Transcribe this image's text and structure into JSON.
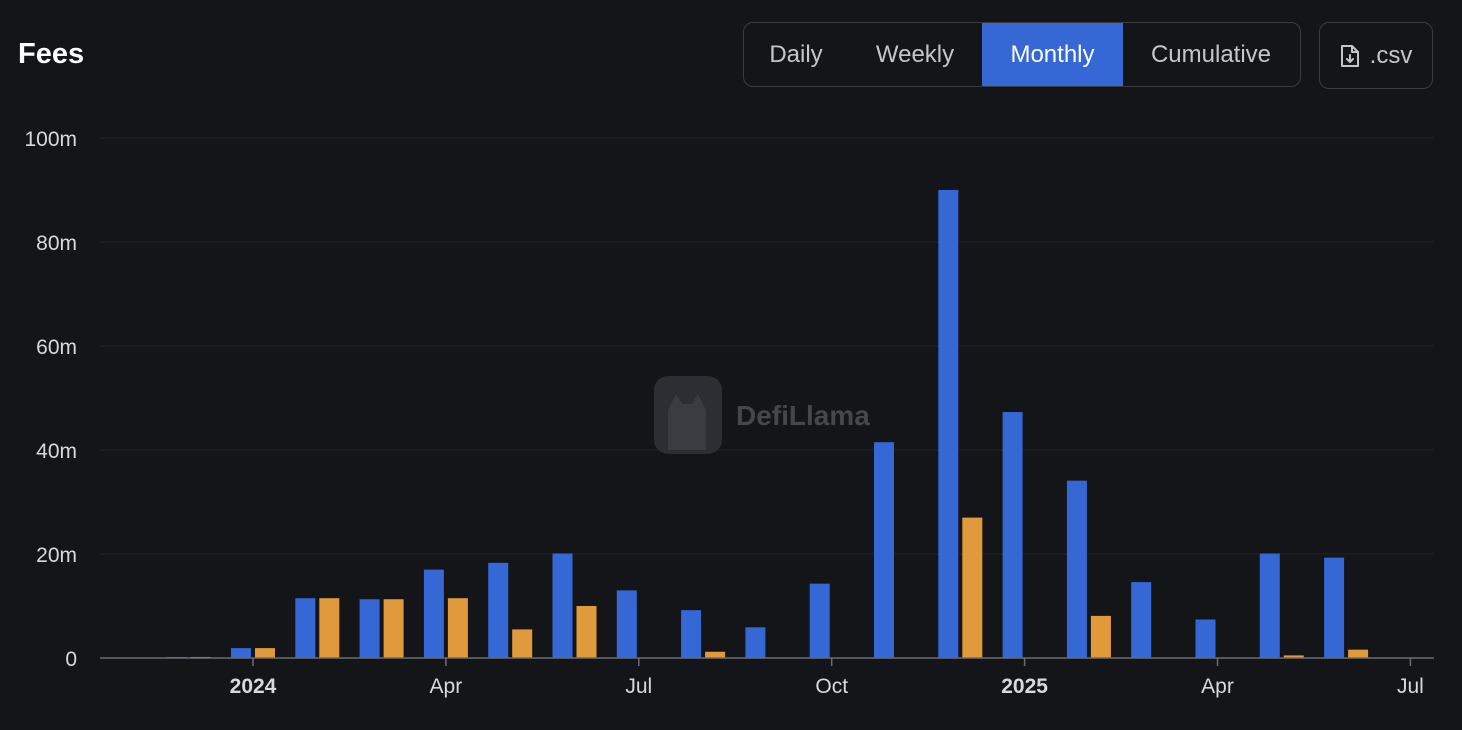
{
  "header": {
    "title": "Fees",
    "tabs": [
      {
        "label": "Daily",
        "active": false
      },
      {
        "label": "Weekly",
        "active": false
      },
      {
        "label": "Monthly",
        "active": true
      },
      {
        "label": "Cumulative",
        "active": false
      }
    ],
    "csv_label": ".csv",
    "csv_icon": "file-download-icon"
  },
  "watermark": "DefiLlama",
  "colors": {
    "series_primary": "#3568d4",
    "series_secondary": "#e09a3c",
    "accent": "#3568d4"
  },
  "chart_data": {
    "type": "bar",
    "categories": [
      "2023-12",
      "2024-01",
      "2024-02",
      "2024-03",
      "2024-04",
      "2024-05",
      "2024-06",
      "2024-07",
      "2024-08",
      "2024-09",
      "2024-10",
      "2024-11",
      "2024-12",
      "2025-01",
      "2025-02",
      "2025-03",
      "2025-04",
      "2025-05",
      "2025-06"
    ],
    "series": [
      {
        "values": [
          0.2,
          1.9,
          11.5,
          11.3,
          17.0,
          18.3,
          20.1,
          13.0,
          9.2,
          5.9,
          14.3,
          41.5,
          90.0,
          47.3,
          34.1,
          14.6,
          7.4,
          20.1,
          19.3
        ]
      },
      {
        "values": [
          0.2,
          1.9,
          11.5,
          11.3,
          11.5,
          5.5,
          10.0,
          0,
          1.2,
          0,
          0,
          0,
          27.0,
          0,
          8.1,
          0,
          0,
          0.5,
          1.6
        ]
      }
    ],
    "yticks": [
      {
        "value": 0,
        "label": "0"
      },
      {
        "value": 20,
        "label": "20m"
      },
      {
        "value": 40,
        "label": "40m"
      },
      {
        "value": 60,
        "label": "60m"
      },
      {
        "value": 80,
        "label": "80m"
      },
      {
        "value": 100,
        "label": "100m"
      }
    ],
    "xticks": [
      {
        "at": "2024-01",
        "label": "2024",
        "bold": true
      },
      {
        "at": "2024-04",
        "label": "Apr",
        "bold": false
      },
      {
        "at": "2024-07",
        "label": "Jul",
        "bold": false
      },
      {
        "at": "2024-10",
        "label": "Oct",
        "bold": false
      },
      {
        "at": "2025-01",
        "label": "2025",
        "bold": true
      },
      {
        "at": "2025-04",
        "label": "Apr",
        "bold": false
      },
      {
        "at": "2025-07",
        "label": "Jul",
        "bold": false
      }
    ],
    "ylim": [
      0,
      100
    ],
    "grid": true,
    "legend": "none"
  }
}
